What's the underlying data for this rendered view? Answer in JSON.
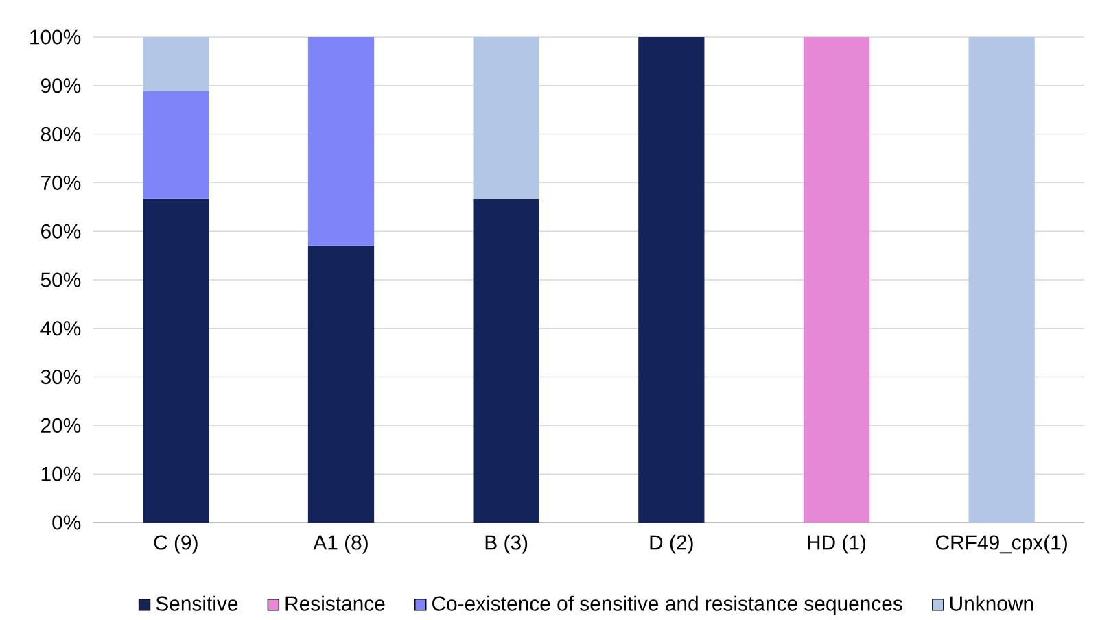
{
  "chart_data": {
    "type": "bar",
    "stacked": true,
    "categories": [
      "C (9)",
      "A1 (8)",
      "B (3)",
      "D (2)",
      "HD (1)",
      "CRF49_cpx(1)"
    ],
    "series": [
      {
        "name": "Sensitive",
        "color": "#14245a",
        "values": [
          66.7,
          57.1,
          66.7,
          100,
          null,
          null
        ]
      },
      {
        "name": "Resistance",
        "color": "#e588d6",
        "values": [
          null,
          null,
          null,
          null,
          100,
          null
        ]
      },
      {
        "name": "Co-existence of sensitive and resistance sequences",
        "color": "#7f84f8",
        "values": [
          22.2,
          42.9,
          null,
          null,
          null,
          null
        ]
      },
      {
        "name": "Unknown",
        "color": "#b4c6e6",
        "values": [
          11.1,
          null,
          33.3,
          null,
          null,
          100
        ]
      }
    ],
    "ylim": [
      0,
      100
    ],
    "yticks": [
      {
        "value": 0,
        "label": "0%"
      },
      {
        "value": 10,
        "label": "10%"
      },
      {
        "value": 20,
        "label": "20%"
      },
      {
        "value": 30,
        "label": "30%"
      },
      {
        "value": 40,
        "label": "40%"
      },
      {
        "value": 50,
        "label": "50%"
      },
      {
        "value": 60,
        "label": "60%"
      },
      {
        "value": 70,
        "label": "70%"
      },
      {
        "value": 80,
        "label": "80%"
      },
      {
        "value": 90,
        "label": "90%"
      },
      {
        "value": 100,
        "label": "100%"
      }
    ],
    "grid": "y",
    "legend": "bottom"
  }
}
